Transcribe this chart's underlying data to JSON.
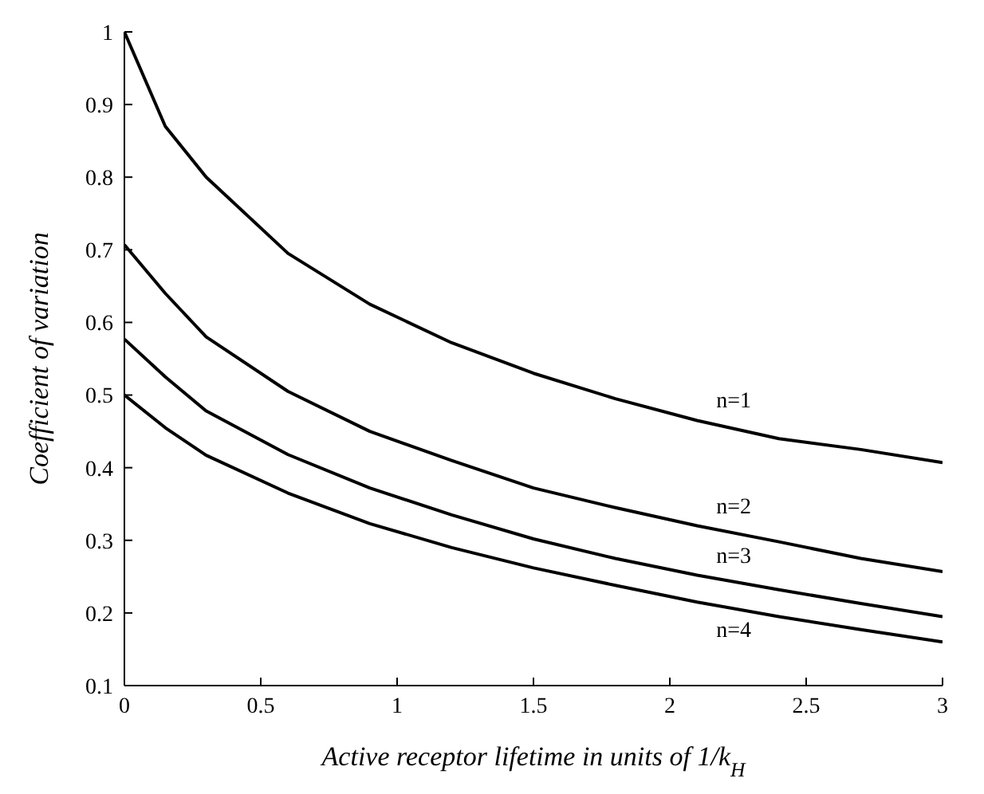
{
  "chart_data": {
    "type": "line",
    "xlabel": "Active receptor lifetime in units of 1/k$_{H}$",
    "ylabel": "Coefficient of variation",
    "x": [
      0,
      0.15,
      0.3,
      0.6,
      0.9,
      1.2,
      1.5,
      1.8,
      2.1,
      2.4,
      2.7,
      3
    ],
    "series": [
      {
        "name": "n=1",
        "color": "#000000",
        "values": [
          1,
          0.87,
          0.8,
          0.695,
          0.625,
          0.572,
          0.53,
          0.495,
          0.465,
          0.44,
          0.425,
          0.407
        ]
      },
      {
        "name": "n=2",
        "color": "#000000",
        "values": [
          0.707,
          0.64,
          0.58,
          0.505,
          0.45,
          0.41,
          0.372,
          0.345,
          0.32,
          0.298,
          0.275,
          0.257
        ]
      },
      {
        "name": "n=3",
        "color": "#000000",
        "values": [
          0.577,
          0.525,
          0.478,
          0.418,
          0.372,
          0.335,
          0.302,
          0.275,
          0.252,
          0.232,
          0.213,
          0.195
        ]
      },
      {
        "name": "n=4",
        "color": "#000000",
        "values": [
          0.5,
          0.455,
          0.417,
          0.365,
          0.323,
          0.29,
          0.262,
          0.238,
          0.215,
          0.195,
          0.177,
          0.16
        ]
      }
    ],
    "xlim": [
      0,
      3
    ],
    "xticks": [
      0,
      0.5,
      1,
      1.5,
      2,
      2.5,
      3
    ],
    "ylim": [
      0.1,
      1
    ],
    "yticks": [
      0.1,
      0.2,
      0.3,
      0.4,
      0.5,
      0.6,
      0.7,
      0.8,
      0.9,
      1
    ],
    "grid": false,
    "legend": false,
    "marker": "none",
    "line_style": "solid"
  }
}
